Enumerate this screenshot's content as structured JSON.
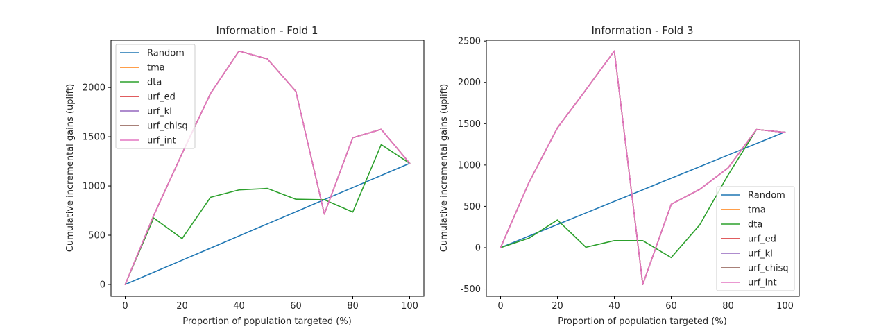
{
  "chart_data": [
    {
      "type": "line",
      "title": "Information - Fold 1",
      "xlabel": "Proportion of population targeted (%)",
      "ylabel": "Cumulative incremental gains (uplift)",
      "x": [
        0,
        10,
        20,
        30,
        40,
        50,
        60,
        70,
        80,
        90,
        100
      ],
      "xlim": [
        -5,
        105
      ],
      "ylim": [
        -120,
        2480
      ],
      "xticks": [
        0,
        20,
        40,
        60,
        80,
        100
      ],
      "yticks": [
        0,
        500,
        1000,
        1500,
        2000
      ],
      "legend_position": "upper left",
      "series": [
        {
          "name": "Random",
          "color": "#1f77b4",
          "values": [
            0,
            123,
            246,
            369,
            492,
            615,
            738,
            861,
            984,
            1107,
            1230
          ]
        },
        {
          "name": "tma",
          "color": "#ff7f0e",
          "values": [
            0,
            700,
            1330,
            1940,
            2370,
            2290,
            1960,
            715,
            1490,
            1575,
            1230
          ]
        },
        {
          "name": "dta",
          "color": "#2ca02c",
          "values": [
            0,
            675,
            465,
            885,
            960,
            975,
            865,
            860,
            735,
            1420,
            1230
          ]
        },
        {
          "name": "urf_ed",
          "color": "#d62728",
          "values": [
            0,
            700,
            1330,
            1940,
            2370,
            2290,
            1960,
            715,
            1490,
            1575,
            1230
          ]
        },
        {
          "name": "urf_kl",
          "color": "#9467bd",
          "values": [
            0,
            700,
            1330,
            1940,
            2370,
            2290,
            1960,
            715,
            1490,
            1575,
            1230
          ]
        },
        {
          "name": "urf_chisq",
          "color": "#8c564b",
          "values": [
            0,
            700,
            1330,
            1940,
            2370,
            2290,
            1960,
            715,
            1490,
            1575,
            1230
          ]
        },
        {
          "name": "urf_int",
          "color": "#e377c2",
          "values": [
            0,
            700,
            1330,
            1940,
            2370,
            2290,
            1960,
            715,
            1490,
            1575,
            1230
          ]
        }
      ]
    },
    {
      "type": "line",
      "title": "Information - Fold 3",
      "xlabel": "Proportion of population targeted (%)",
      "ylabel": "Cumulative incremental gains (uplift)",
      "x": [
        0,
        10,
        20,
        30,
        40,
        50,
        60,
        70,
        80,
        90,
        100
      ],
      "xlim": [
        -5,
        105
      ],
      "ylim": [
        -588,
        2510
      ],
      "xticks": [
        0,
        20,
        40,
        60,
        80,
        100
      ],
      "yticks": [
        -500,
        0,
        500,
        1000,
        1500,
        2000,
        2500
      ],
      "legend_position": "lower right",
      "series": [
        {
          "name": "Random",
          "color": "#1f77b4",
          "values": [
            0,
            140,
            280,
            420,
            560,
            700,
            840,
            980,
            1120,
            1260,
            1400
          ]
        },
        {
          "name": "tma",
          "color": "#ff7f0e",
          "values": [
            0,
            790,
            1450,
            1910,
            2380,
            -445,
            525,
            705,
            965,
            1430,
            1395
          ]
        },
        {
          "name": "dta",
          "color": "#2ca02c",
          "values": [
            0,
            115,
            335,
            5,
            85,
            85,
            -120,
            275,
            880,
            1430,
            1395
          ]
        },
        {
          "name": "urf_ed",
          "color": "#d62728",
          "values": [
            0,
            790,
            1450,
            1910,
            2380,
            -445,
            525,
            705,
            965,
            1430,
            1395
          ]
        },
        {
          "name": "urf_kl",
          "color": "#9467bd",
          "values": [
            0,
            790,
            1450,
            1910,
            2380,
            -445,
            525,
            705,
            965,
            1430,
            1395
          ]
        },
        {
          "name": "urf_chisq",
          "color": "#8c564b",
          "values": [
            0,
            790,
            1450,
            1910,
            2380,
            -445,
            525,
            705,
            965,
            1430,
            1395
          ]
        },
        {
          "name": "urf_int",
          "color": "#e377c2",
          "values": [
            0,
            790,
            1450,
            1910,
            2380,
            -445,
            525,
            705,
            965,
            1430,
            1395
          ]
        }
      ]
    }
  ]
}
